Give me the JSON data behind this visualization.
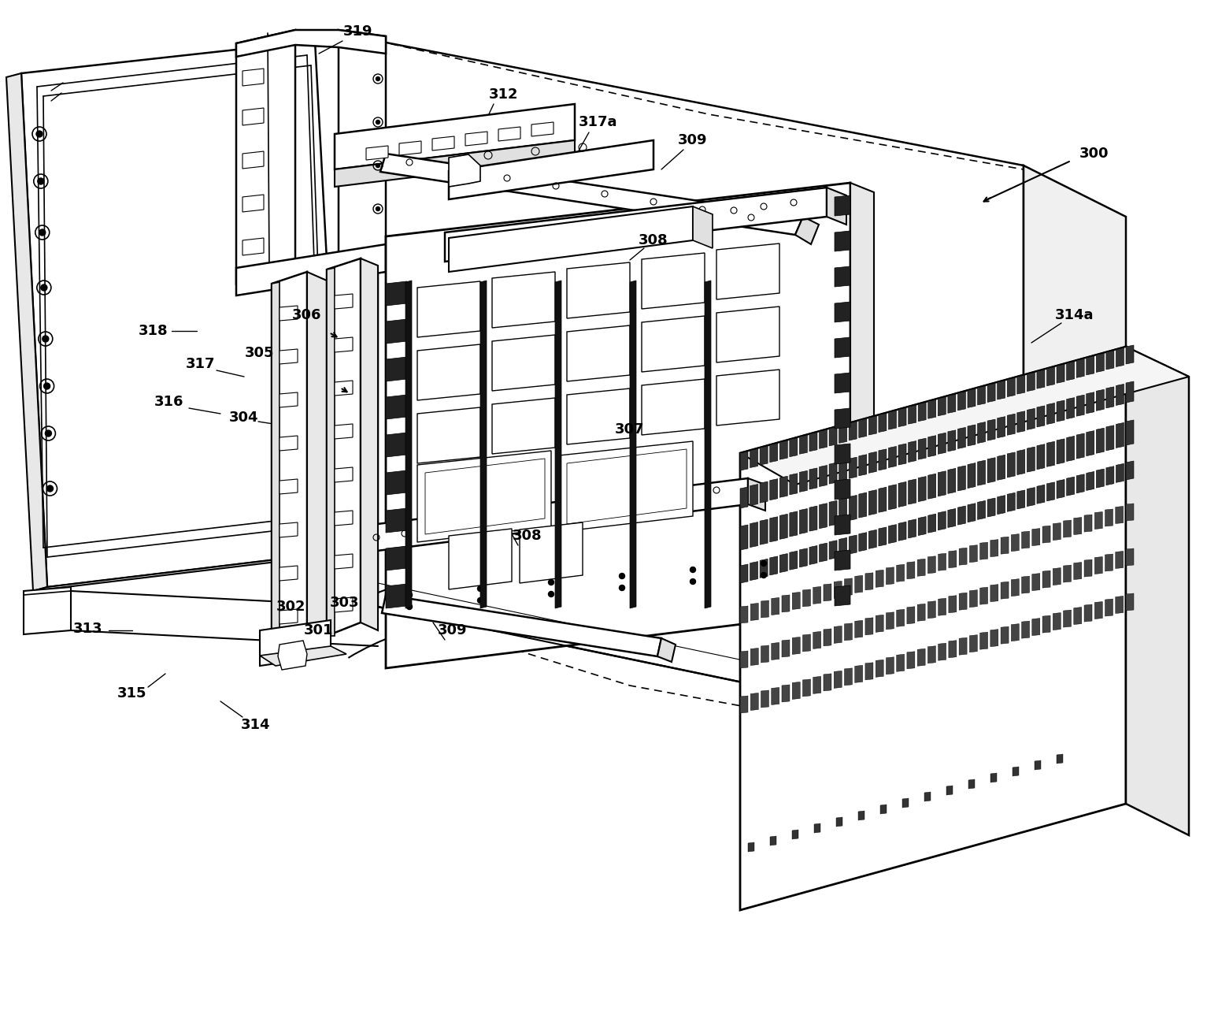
{
  "bg": "#ffffff",
  "lc": "#000000",
  "fw": 15.33,
  "fh": 12.97,
  "dpi": 100,
  "lw": 1.5,
  "label_fs": 13
}
